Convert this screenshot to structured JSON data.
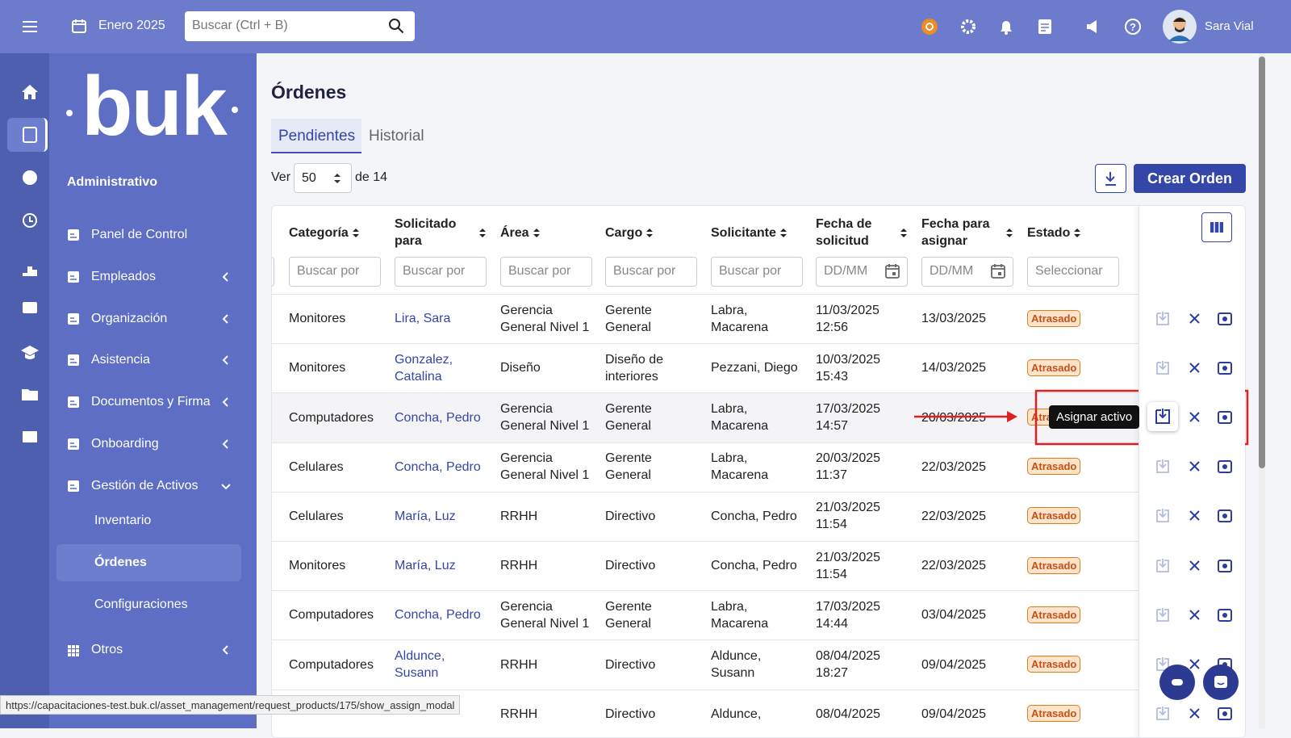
{
  "topbar": {
    "period": "Enero 2025",
    "search": "Buscar (Ctrl + B)",
    "user": "Sara Vial"
  },
  "sidebar": {
    "brand": "buk",
    "section": "Administrativo",
    "menu": [
      "Panel de Control",
      "Empleados",
      "Organización",
      "Asistencia",
      "Documentos y Firma",
      "Onboarding",
      "Gestión de Activos"
    ],
    "submenu": [
      "Inventario",
      "Órdenes",
      "Configuraciones"
    ],
    "other": "Otros"
  },
  "page": {
    "title": "Órdenes",
    "tabs": [
      "Pendientes",
      "Historial"
    ],
    "show_label": "Ver",
    "page_size": "50",
    "total_label": "de 14",
    "create_button": "Crear Orden"
  },
  "table": {
    "columns": [
      {
        "label": "Categoría",
        "filter": "Buscar por"
      },
      {
        "label": "Solicitado para",
        "filter": "Buscar por"
      },
      {
        "label": "Área",
        "filter": "Buscar por"
      },
      {
        "label": "Cargo",
        "filter": "Buscar por"
      },
      {
        "label": "Solicitante",
        "filter": "Buscar por"
      },
      {
        "label": "Fecha de solicitud",
        "filter": "DD/MM"
      },
      {
        "label": "Fecha para asignar",
        "filter": "DD/MM"
      },
      {
        "label": "Estado",
        "filter": "Seleccionar"
      }
    ],
    "rows": [
      [
        "Monitores",
        "Lira, Sara",
        "Gerencia General Nivel 1",
        "Gerente General",
        "Labra, Macarena",
        "11/03/2025 12:56",
        "13/03/2025",
        "Atrasado"
      ],
      [
        "Monitores",
        "Gonzalez, Catalina",
        "Diseño",
        "Diseño de interiores",
        "Pezzani, Diego",
        "10/03/2025 15:43",
        "14/03/2025",
        "Atrasado"
      ],
      [
        "Computadores",
        "Concha, Pedro",
        "Gerencia General Nivel 1",
        "Gerente General",
        "Labra, Macarena",
        "17/03/2025 14:57",
        "20/03/2025",
        "Atrasado"
      ],
      [
        "Celulares",
        "Concha, Pedro",
        "Gerencia General Nivel 1",
        "Gerente General",
        "Labra, Macarena",
        "20/03/2025 11:37",
        "22/03/2025",
        "Atrasado"
      ],
      [
        "Celulares",
        "María, Luz",
        "RRHH",
        "Directivo",
        "Concha, Pedro",
        "21/03/2025 11:54",
        "22/03/2025",
        "Atrasado"
      ],
      [
        "Monitores",
        "María, Luz",
        "RRHH",
        "Directivo",
        "Concha, Pedro",
        "21/03/2025 11:54",
        "22/03/2025",
        "Atrasado"
      ],
      [
        "Computadores",
        "Concha, Pedro",
        "Gerencia General Nivel 1",
        "Gerente General",
        "Labra, Macarena",
        "17/03/2025 14:44",
        "03/04/2025",
        "Atrasado"
      ],
      [
        "Computadores",
        "Aldunce, Susann",
        "RRHH",
        "Directivo",
        "Aldunce, Susann",
        "08/04/2025 18:27",
        "09/04/2025",
        "Atrasado"
      ],
      [
        null,
        null,
        "RRHH",
        "Directivo",
        "Aldunce,",
        "08/04/2025",
        "09/04/2025",
        "Atrasado"
      ]
    ]
  },
  "tooltip": "Asignar activo",
  "status_url": "https://capacitaciones-test.buk.cl/asset_management/request_products/175/show_assign_modal"
}
